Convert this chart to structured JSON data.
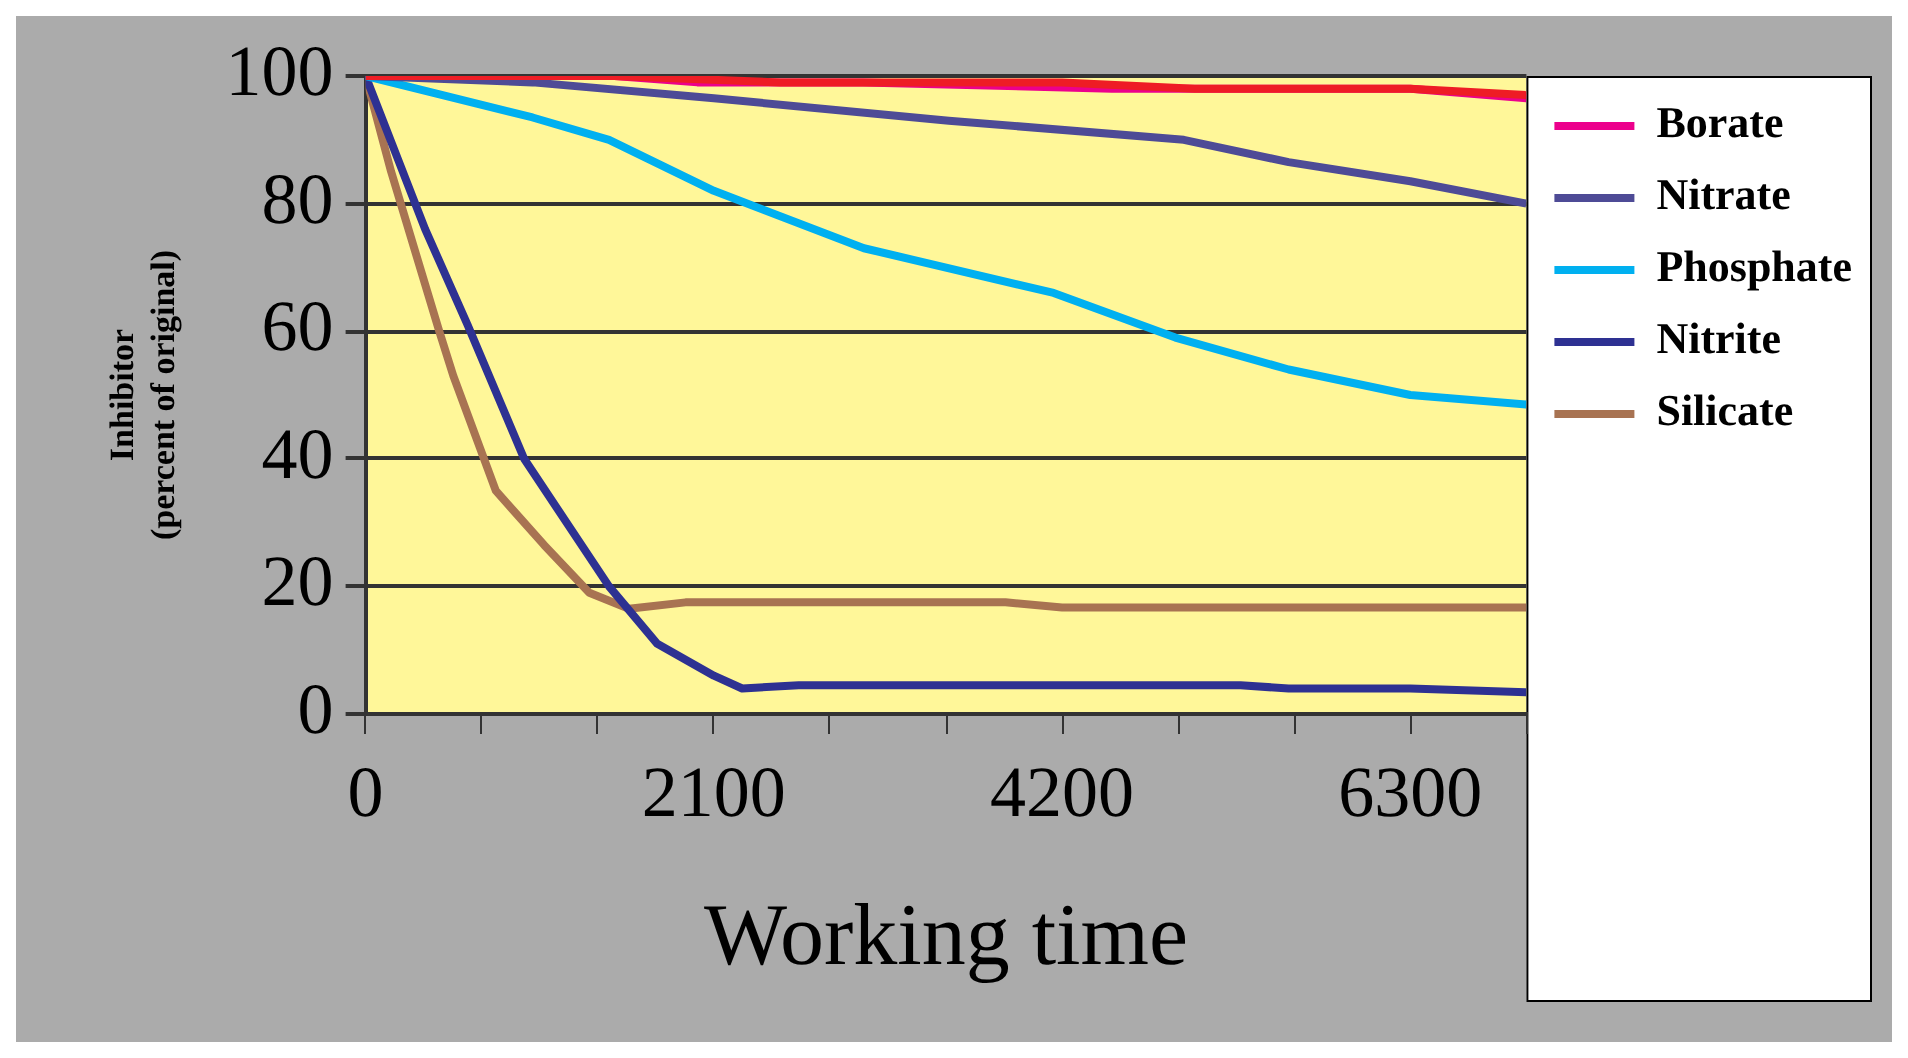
{
  "chart_data": {
    "type": "line",
    "xlabel": "Working time",
    "ylabel": "Inhibitor\n(percent of original)",
    "xlim": [
      0,
      7000
    ],
    "xticks": [
      0,
      {
        "value": 700,
        "label": null
      },
      {
        "value": 1400,
        "label": null
      },
      2100,
      {
        "value": 2800,
        "label": null
      },
      {
        "value": 3500,
        "label": null
      },
      4200,
      {
        "value": 4900,
        "label": null
      },
      {
        "value": 5600,
        "label": null
      },
      6300,
      {
        "value": 7000,
        "label": null
      }
    ],
    "ylim": [
      0,
      100
    ],
    "yticks": [
      0,
      20,
      40,
      60,
      80,
      100
    ],
    "grid": "y",
    "legend": "right",
    "marker": "none",
    "line_style": "solid",
    "series": [
      {
        "color": "#ee1c25",
        "x": [
          0,
          1500,
          2500,
          4200,
          5000,
          6300,
          7000
        ],
        "values": [
          100,
          100,
          99,
          99,
          98,
          98,
          97
        ]
      },
      {
        "name": "Borate",
        "color": "#ec008c",
        "x": [
          0,
          1500,
          2000,
          3000,
          4500,
          6300,
          7000
        ],
        "values": [
          100,
          100,
          99,
          99,
          98,
          98,
          96.5
        ]
      },
      {
        "name": "Nitrate",
        "color": "#4e4b96",
        "x": [
          0,
          1007,
          2100,
          3517,
          4934,
          5566,
          6300,
          7000
        ],
        "values": [
          100,
          99,
          96.5,
          93,
          90,
          86.5,
          83.5,
          80
        ]
      },
      {
        "name": "Phosphate",
        "color": "#00b0f0",
        "x": [
          0,
          1007,
          1468,
          2100,
          3005,
          4149,
          4883,
          5566,
          6300,
          7000
        ],
        "values": [
          100,
          93.5,
          90,
          82,
          73,
          66,
          59,
          54,
          50,
          48.5
        ]
      },
      {
        "name": "Nitrite",
        "color": "#2e3192",
        "x": [
          0,
          359,
          615,
          956,
          1468,
          1759,
          2100,
          2271,
          2612,
          5276,
          5566,
          6300,
          7000
        ],
        "values": [
          100,
          76,
          61,
          40,
          20,
          11,
          6,
          4,
          4.5,
          4.5,
          4,
          4,
          3.4
        ]
      },
      {
        "name": "Silicate",
        "color": "#a87352",
        "x": [
          0,
          154,
          444,
          529,
          785,
          1076,
          1349,
          1588,
          1929,
          3859,
          4200,
          7000
        ],
        "values": [
          100,
          85,
          60,
          53,
          35,
          26.5,
          19,
          16.5,
          17.5,
          17.5,
          16.7,
          16.7
        ]
      }
    ]
  }
}
